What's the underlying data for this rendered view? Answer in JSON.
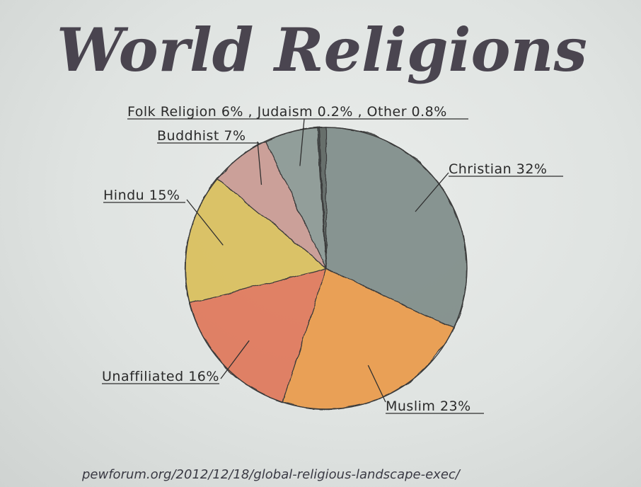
{
  "chart_data": {
    "type": "pie",
    "title": "World Religions",
    "slices": [
      {
        "label": "Christian 32%",
        "value": 32,
        "color": "#7f8c89"
      },
      {
        "label": "Muslim 23%",
        "value": 23,
        "color": "#e99a4a"
      },
      {
        "label": "Unaffiliated 16%",
        "value": 16,
        "color": "#e0785a"
      },
      {
        "label": "Hindu 15%",
        "value": 15,
        "color": "#d9bf5c"
      },
      {
        "label": "Buddhist 7%",
        "value": 7,
        "color": "#c99a92"
      },
      {
        "label": "Folk Religion 6%",
        "value": 6,
        "color": "#8a9794"
      },
      {
        "label": "Judaism 0.2%",
        "value": 0.2,
        "color": "#3e4746"
      },
      {
        "label": "Other 0.8%",
        "value": 0.8,
        "color": "#5b6462"
      }
    ],
    "top_label": "Folk Religion 6% , Judaism 0.2% , Other 0.8%",
    "source": "pewforum.org/2012/12/18/global-religious-landscape-exec/"
  }
}
